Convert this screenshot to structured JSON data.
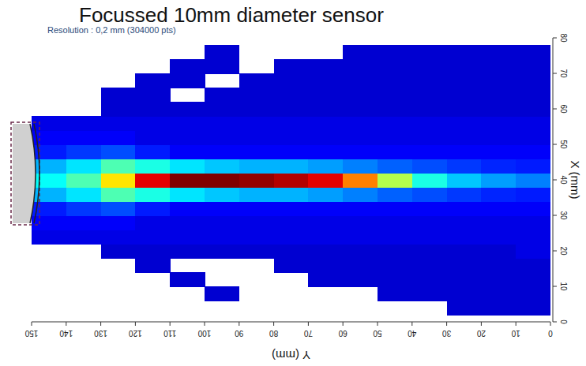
{
  "chart_data": {
    "type": "heatmap",
    "title": "Focussed 10mm diameter sensor",
    "subtitle": "Resolution : 0,2 mm (304000 pts)",
    "xlabel": "Y (mm)",
    "ylabel": "X (mm)",
    "xlim": [
      150,
      0
    ],
    "ylim": [
      0,
      80
    ],
    "xticks": [
      150,
      140,
      130,
      120,
      110,
      100,
      90,
      80,
      70,
      60,
      50,
      40,
      30,
      20,
      10,
      0
    ],
    "yticks": [
      0,
      10,
      20,
      30,
      40,
      50,
      60,
      70,
      80
    ],
    "zlim": [
      0,
      1
    ],
    "x": [
      145,
      135,
      125,
      115,
      105,
      95,
      85,
      75,
      65,
      55,
      45,
      35,
      25,
      15,
      5
    ],
    "y": [
      4,
      8,
      12,
      16,
      20,
      24,
      28,
      32,
      36,
      40,
      44,
      48,
      52,
      56,
      60,
      64,
      68,
      72,
      76
    ],
    "values": [
      [
        null,
        null,
        null,
        null,
        null,
        0.1,
        0.12,
        0.15,
        0.3,
        0.38,
        0.3,
        0.15,
        0.12,
        0.1,
        null,
        null,
        null,
        null,
        null
      ],
      [
        null,
        null,
        null,
        null,
        null,
        0.1,
        0.12,
        0.18,
        0.35,
        0.45,
        0.35,
        0.18,
        0.12,
        0.1,
        null,
        null,
        null,
        null,
        null
      ],
      [
        null,
        null,
        null,
        null,
        0.08,
        0.1,
        0.12,
        0.2,
        0.45,
        0.65,
        0.45,
        0.2,
        0.12,
        0.1,
        0.08,
        0.08,
        null,
        null,
        null
      ],
      [
        null,
        null,
        null,
        0.08,
        0.08,
        0.1,
        0.1,
        0.15,
        0.4,
        0.9,
        0.4,
        0.15,
        0.1,
        0.1,
        0.08,
        0.08,
        0.08,
        null,
        null
      ],
      [
        null,
        null,
        0.08,
        null,
        0.08,
        0.1,
        0.1,
        0.12,
        0.35,
        1.0,
        0.35,
        0.12,
        0.1,
        0.1,
        0.08,
        null,
        0.08,
        0.08,
        null
      ],
      [
        null,
        0.08,
        null,
        null,
        0.08,
        0.1,
        0.1,
        0.12,
        0.32,
        1.0,
        0.32,
        0.12,
        0.1,
        0.1,
        0.08,
        0.08,
        null,
        0.08,
        0.08
      ],
      [
        null,
        null,
        null,
        null,
        0.08,
        0.1,
        0.1,
        0.12,
        0.3,
        0.98,
        0.3,
        0.12,
        0.1,
        0.1,
        0.08,
        0.08,
        0.08,
        null,
        null
      ],
      [
        null,
        null,
        null,
        0.08,
        0.08,
        0.1,
        0.1,
        0.12,
        0.3,
        0.95,
        0.3,
        0.12,
        0.1,
        0.1,
        0.08,
        0.08,
        0.08,
        0.08,
        null
      ],
      [
        null,
        null,
        0.08,
        0.08,
        0.08,
        0.1,
        0.1,
        0.12,
        0.28,
        0.9,
        0.28,
        0.12,
        0.1,
        0.1,
        0.08,
        0.08,
        0.08,
        0.08,
        null
      ],
      [
        null,
        null,
        0.08,
        0.08,
        0.08,
        0.1,
        0.1,
        0.12,
        0.25,
        0.75,
        0.25,
        0.12,
        0.1,
        0.1,
        0.08,
        0.08,
        0.08,
        0.08,
        0.08
      ],
      [
        null,
        0.08,
        0.08,
        0.08,
        0.08,
        0.1,
        0.1,
        0.12,
        0.22,
        0.55,
        0.22,
        0.12,
        0.1,
        0.1,
        0.08,
        0.08,
        0.08,
        0.08,
        0.08
      ],
      [
        null,
        0.08,
        0.08,
        0.08,
        0.08,
        0.1,
        0.1,
        0.12,
        0.2,
        0.4,
        0.2,
        0.12,
        0.1,
        0.1,
        0.08,
        0.08,
        0.08,
        0.08,
        0.08
      ],
      [
        0.08,
        0.08,
        0.08,
        0.08,
        0.08,
        0.1,
        0.1,
        0.12,
        0.18,
        0.32,
        0.18,
        0.12,
        0.1,
        0.1,
        0.08,
        0.08,
        0.08,
        0.08,
        0.08
      ],
      [
        0.08,
        0.08,
        0.08,
        0.08,
        0.08,
        0.1,
        0.1,
        0.12,
        0.16,
        0.28,
        0.16,
        0.12,
        0.1,
        0.1,
        0.08,
        0.08,
        0.08,
        0.08,
        0.08
      ],
      [
        0.08,
        0.08,
        0.08,
        0.08,
        0.1,
        0.1,
        0.1,
        0.12,
        0.15,
        0.25,
        0.15,
        0.12,
        0.1,
        0.1,
        0.08,
        0.08,
        0.08,
        0.08,
        0.08
      ]
    ]
  }
}
